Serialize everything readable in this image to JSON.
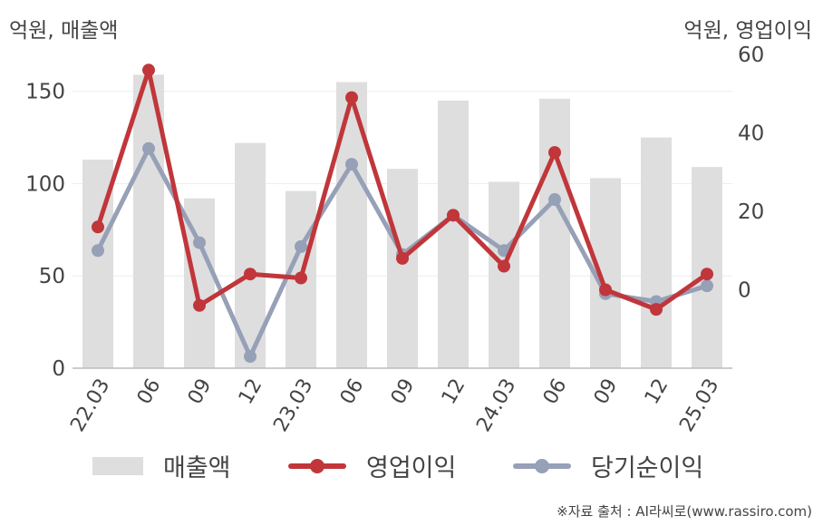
{
  "units": {
    "left": "억원, 매출액",
    "right": "억원, 영업이익"
  },
  "source": "※자료 출처 : AI라씨로(www.rassiro.com)",
  "colors": {
    "revenue": "#dedede",
    "operating": "#c0363a",
    "net": "#96a0b7",
    "grid": "#eeeeee",
    "axis": "#bbbbbb"
  },
  "legend": [
    {
      "label": "매출액",
      "kind": "bar"
    },
    {
      "label": "영업이익",
      "kind": "line-red"
    },
    {
      "label": "당기순이익",
      "kind": "line-blue"
    }
  ],
  "chart_data": {
    "type": "bar",
    "categories": [
      "22.03",
      "06",
      "09",
      "12",
      "23.03",
      "06",
      "09",
      "12",
      "24.03",
      "06",
      "09",
      "12",
      "25.03"
    ],
    "left_axis": {
      "ticks": [
        0,
        50,
        100,
        150
      ],
      "ylim": [
        0,
        170
      ]
    },
    "right_axis": {
      "ticks": [
        0,
        20,
        40,
        60
      ],
      "ylim": [
        -20,
        60
      ]
    },
    "series": [
      {
        "name": "매출액",
        "type": "bar",
        "axis": "left",
        "values": [
          113,
          159,
          92,
          122,
          96,
          155,
          108,
          145,
          101,
          146,
          103,
          125,
          109
        ]
      },
      {
        "name": "영업이익",
        "type": "line",
        "axis": "right",
        "values": [
          16,
          56,
          -4,
          4,
          3,
          49,
          8,
          19,
          6,
          35,
          0,
          -5,
          4
        ]
      },
      {
        "name": "당기순이익",
        "type": "line",
        "axis": "right",
        "values": [
          10,
          36,
          12,
          -17,
          11,
          32,
          9,
          19,
          10,
          23,
          -1,
          -3,
          1
        ]
      }
    ],
    "grid": true,
    "legend_position": "bottom"
  }
}
